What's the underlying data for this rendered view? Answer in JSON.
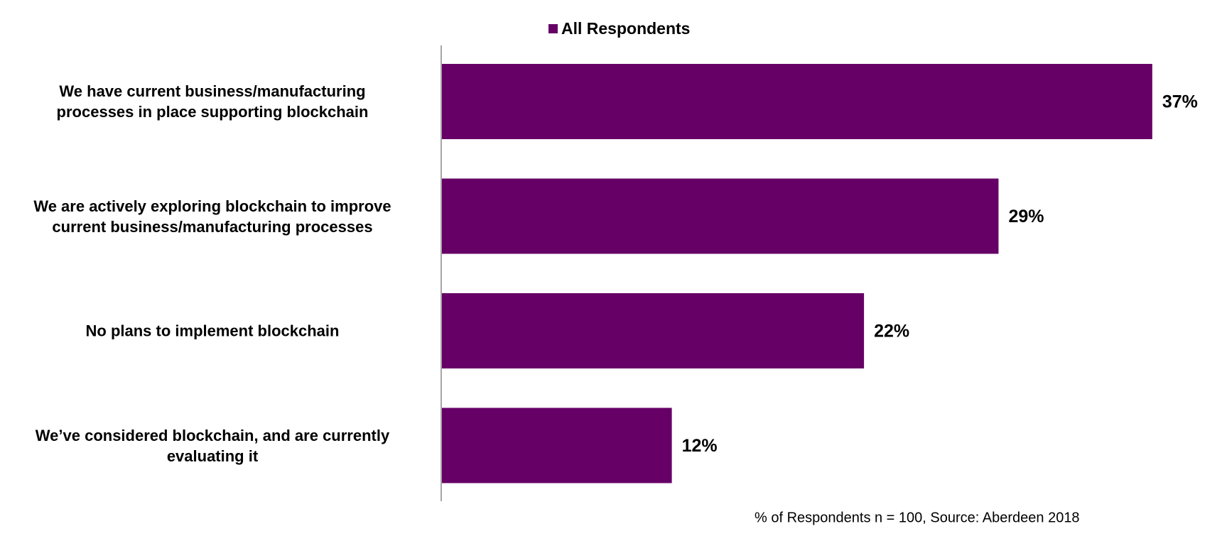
{
  "chart_data": {
    "type": "hbar",
    "categories": [
      "We have current business/manufacturing\nprocesses in place supporting blockchain",
      "We are actively exploring blockchain to improve\ncurrent business/manufacturing processes",
      "No plans to implement blockchain",
      "We’ve considered blockchain, and are currently\nevaluating it"
    ],
    "series": [
      {
        "name": "All Respondents",
        "color": "#660066",
        "values": [
          37,
          29,
          22,
          12
        ],
        "value_labels": [
          "37%",
          "29%",
          "22%",
          "12%"
        ]
      }
    ],
    "xlim": [
      0,
      40
    ],
    "note": "% of Respondents n = 100, Source: Aberdeen 2018"
  }
}
